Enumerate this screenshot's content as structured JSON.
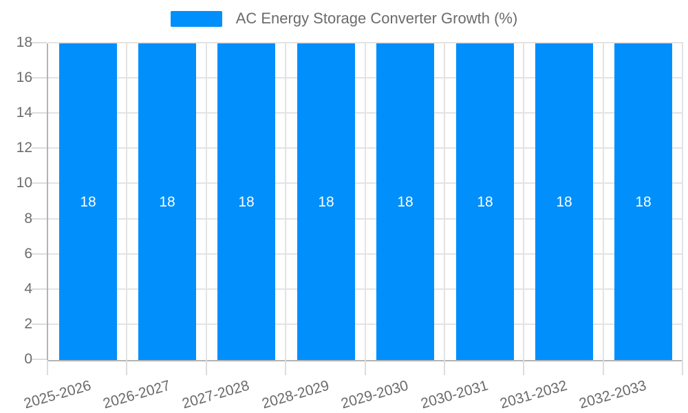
{
  "legend": {
    "label": "AC Energy Storage Converter Growth (%)"
  },
  "chart_data": {
    "type": "bar",
    "title": "AC Energy Storage Converter Growth (%)",
    "categories": [
      "2025-2026",
      "2026-2027",
      "2027-2028",
      "2028-2029",
      "2029-2030",
      "2030-2031",
      "2031-2032",
      "2032-2033"
    ],
    "series": [
      {
        "name": "AC Energy Storage Converter Growth (%)",
        "values": [
          18,
          18,
          18,
          18,
          18,
          18,
          18,
          18
        ]
      }
    ],
    "value_labels": [
      "18",
      "18",
      "18",
      "18",
      "18",
      "18",
      "18",
      "18"
    ],
    "xlabel": "",
    "ylabel": "",
    "ylim": [
      0,
      18
    ],
    "ytick_step": 2,
    "ytick_labels": [
      "0",
      "2",
      "4",
      "6",
      "8",
      "10",
      "12",
      "14",
      "16",
      "18"
    ],
    "grid": true,
    "legend_position": "top-center",
    "colors": {
      "bar": "#008FFB",
      "value_label": "#ffffff",
      "axis_text": "#6b6b6b",
      "gridline": "#e3e3e3",
      "axis_border": "#b3b3b3",
      "background": "#ffffff"
    }
  }
}
